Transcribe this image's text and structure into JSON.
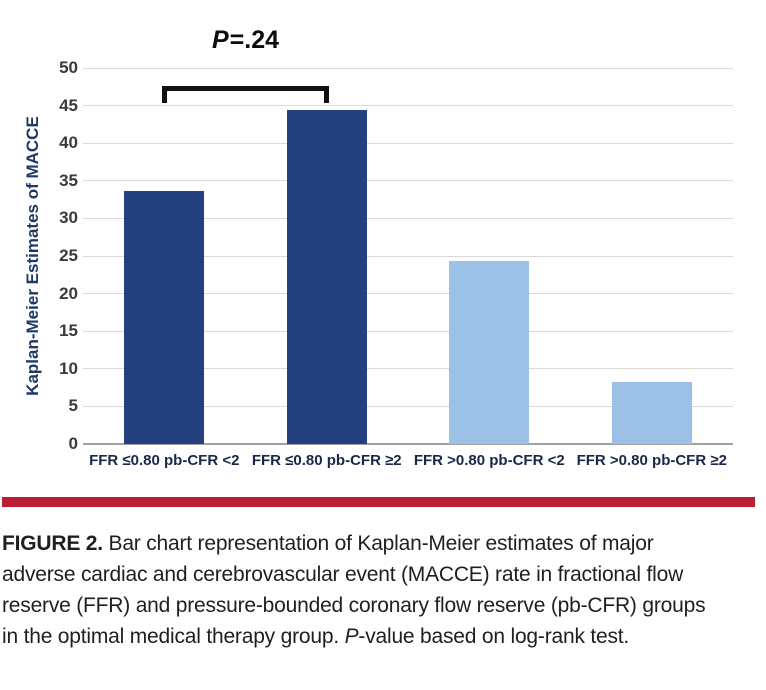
{
  "chart_data": {
    "type": "bar",
    "title": "",
    "xlabel": "",
    "ylabel": "Kaplan-Meier Estimates of MACCE",
    "categories": [
      "FFR ≤0.80 pb-CFR <2",
      "FFR ≤0.80 pb-CFR ≥2",
      "FFR >0.80 pb-CFR <2",
      "FFR >0.80 pb-CFR ≥2"
    ],
    "values": [
      33.6,
      44.4,
      24.3,
      8.3
    ],
    "bar_colors": [
      "#25407e",
      "#25407e",
      "#9bc2e6",
      "#9bc2e6"
    ],
    "ylim": [
      0,
      50
    ],
    "ytick_step": 5,
    "grid": true,
    "legend": "none",
    "annotation": {
      "label_italic": "P",
      "label_rest": "=.24",
      "connects_categories": [
        0,
        1
      ],
      "bracket_top_value": 47.6
    }
  },
  "colors": {
    "dark_bar": "#25407e",
    "light_bar": "#9bc2e6",
    "gridline": "#d9d9d9",
    "baseline": "#a1a1a1",
    "axis_title": "#1f3864",
    "divider_rule": "#bc1e33",
    "caption_text": "#221e1f"
  },
  "caption": {
    "lines": [
      [
        {
          "t": "FIGURE 2.",
          "b": true
        },
        {
          "t": " Bar chart representation of Kaplan-Meier estimates of major"
        }
      ],
      [
        {
          "t": "adverse cardiac and cerebrovascular event (MACCE) rate in fractional flow"
        }
      ],
      [
        {
          "t": "reserve (FFR) and pressure-bounded coronary flow reserve (pb-CFR) groups"
        }
      ],
      [
        {
          "t": "in the optimal medical therapy group. "
        },
        {
          "t": "P",
          "i": true
        },
        {
          "t": "-value based on log-rank test."
        }
      ]
    ]
  }
}
